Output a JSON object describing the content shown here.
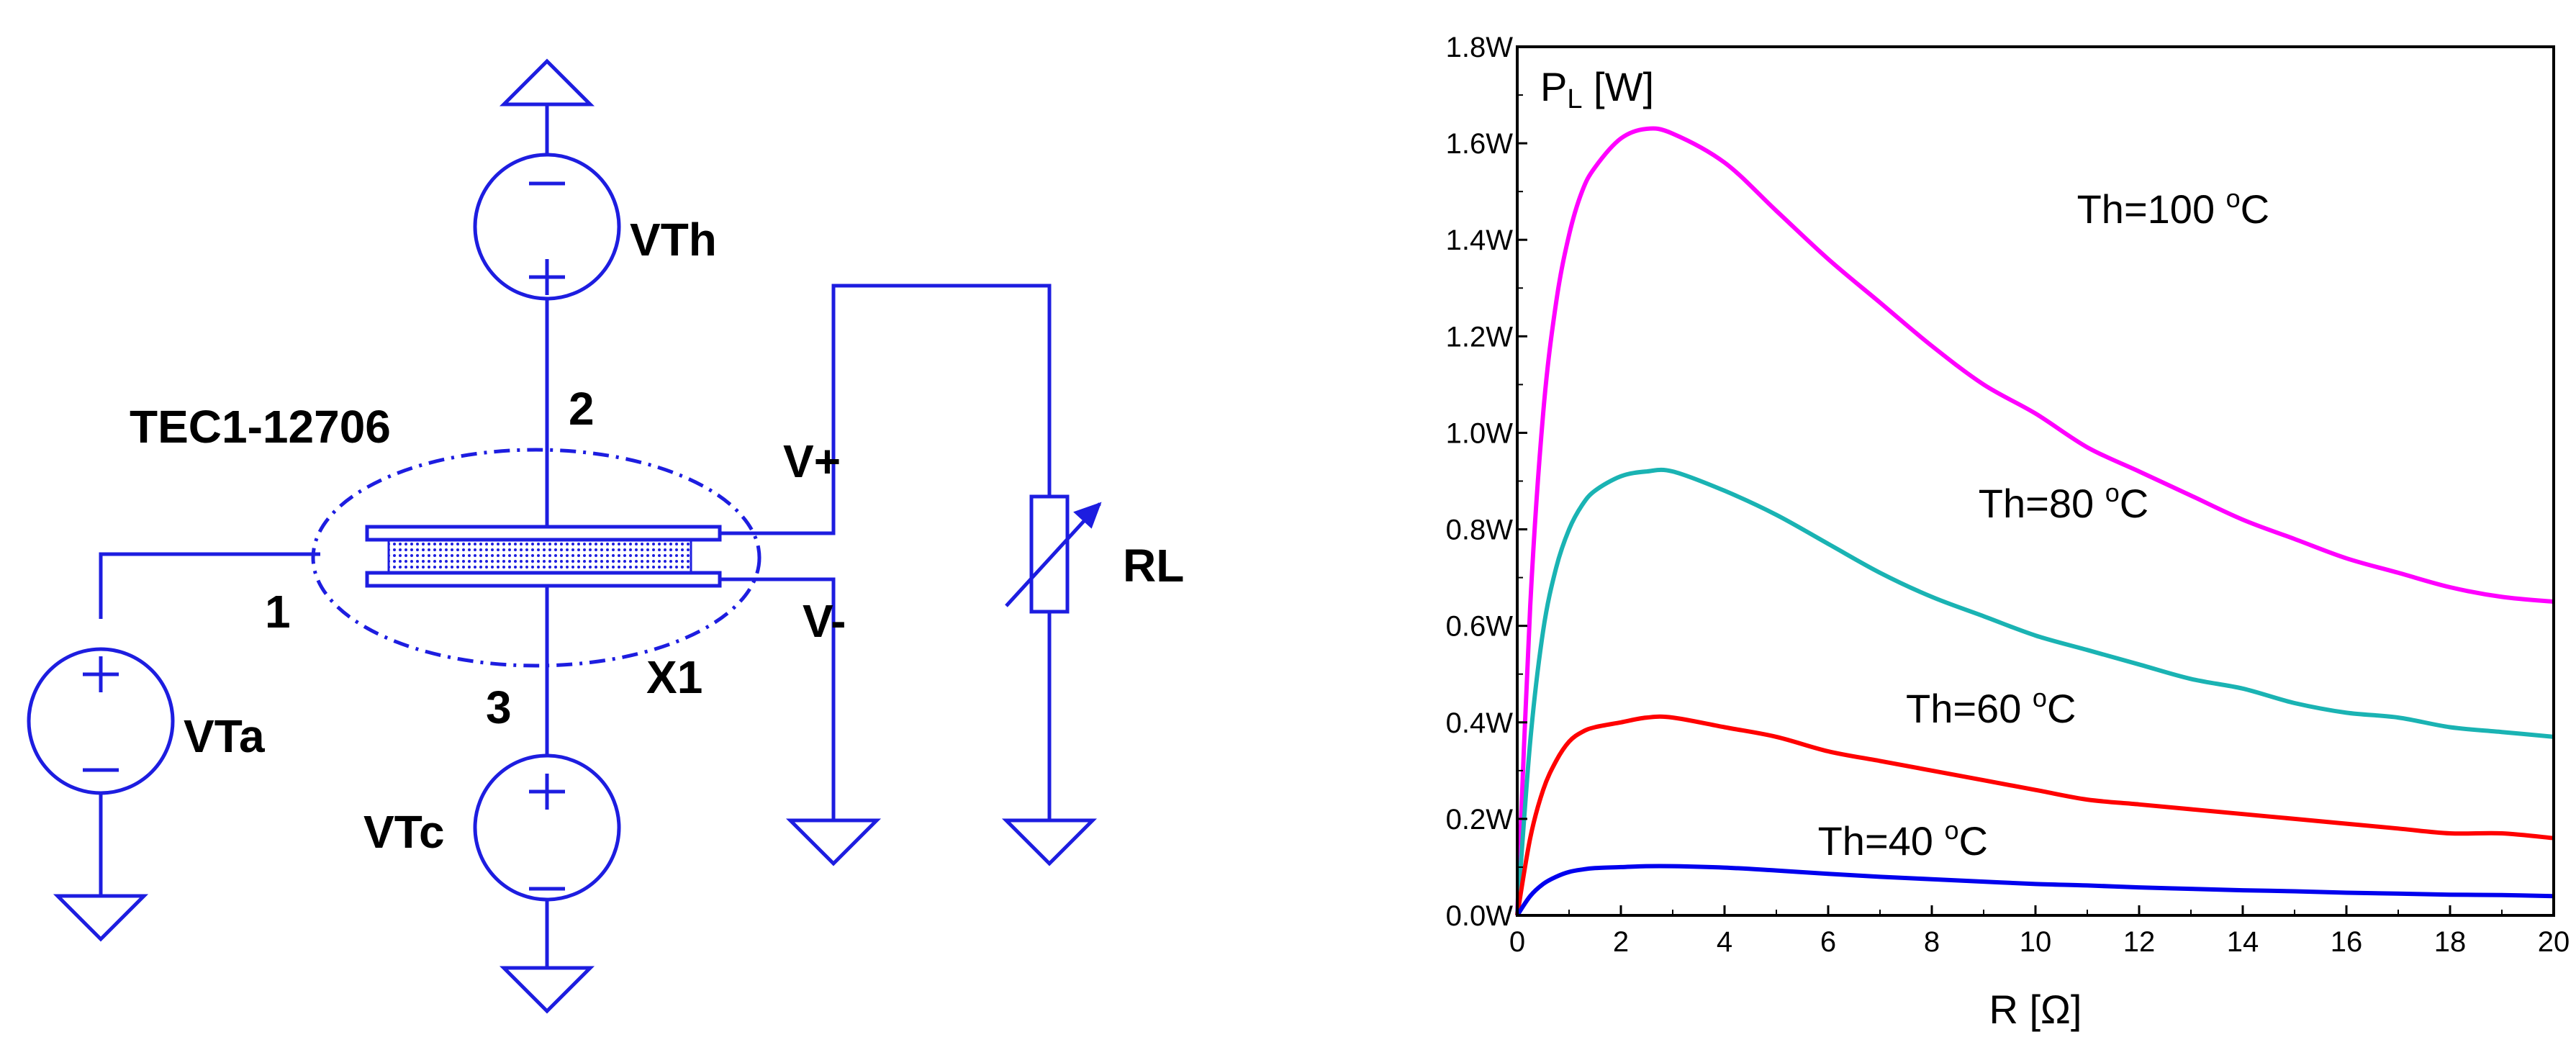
{
  "schematic": {
    "labels": {
      "vth": "VTh",
      "vta": "VTa",
      "vtc": "VTc",
      "tec": "TEC1-12706",
      "x1": "X1",
      "rl": "RL",
      "vplus": "V+",
      "vminus": "V-",
      "node1": "1",
      "node2": "2",
      "node3": "3"
    },
    "wire_color": "#1d1de0"
  },
  "chart_data": {
    "type": "line",
    "ylabel_main": "P",
    "ylabel_sub": "L",
    "ylabel_unit": " [W]",
    "xlabel": "R [Ω]",
    "xlim": [
      0,
      20
    ],
    "ylim": [
      0,
      1.8
    ],
    "xticks": [
      "0",
      "2",
      "4",
      "6",
      "8",
      "10",
      "12",
      "14",
      "16",
      "18",
      "20"
    ],
    "yticks": [
      "0.0W",
      "0.2W",
      "0.4W",
      "0.6W",
      "0.8W",
      "1.0W",
      "1.2W",
      "1.4W",
      "1.6W",
      "1.8W"
    ],
    "grid": false,
    "x": [
      0,
      0.25,
      0.5,
      0.75,
      1,
      1.25,
      1.5,
      2,
      2.5,
      3,
      4,
      5,
      6,
      7,
      8,
      9,
      10,
      11,
      12,
      13,
      14,
      15,
      16,
      17,
      18,
      19,
      20
    ],
    "series": [
      {
        "color": "#ff00ff",
        "values": [
          0,
          0.64,
          1.04,
          1.27,
          1.41,
          1.5,
          1.55,
          1.61,
          1.63,
          1.62,
          1.56,
          1.46,
          1.36,
          1.27,
          1.18,
          1.1,
          1.04,
          0.97,
          0.92,
          0.87,
          0.82,
          0.78,
          0.74,
          0.71,
          0.68,
          0.66,
          0.65
        ]
      },
      {
        "color": "#1ab3b3",
        "values": [
          0,
          0.36,
          0.59,
          0.72,
          0.8,
          0.85,
          0.88,
          0.91,
          0.92,
          0.92,
          0.88,
          0.83,
          0.77,
          0.71,
          0.66,
          0.62,
          0.58,
          0.55,
          0.52,
          0.49,
          0.47,
          0.44,
          0.42,
          0.41,
          0.39,
          0.38,
          0.37
        ]
      },
      {
        "color": "#ff0000",
        "values": [
          0,
          0.16,
          0.26,
          0.32,
          0.36,
          0.38,
          0.39,
          0.4,
          0.41,
          0.41,
          0.39,
          0.37,
          0.34,
          0.32,
          0.3,
          0.28,
          0.26,
          0.24,
          0.23,
          0.22,
          0.21,
          0.2,
          0.19,
          0.18,
          0.17,
          0.17,
          0.16
        ]
      },
      {
        "color": "#0000ee",
        "values": [
          0,
          0.04,
          0.065,
          0.08,
          0.09,
          0.095,
          0.098,
          0.1,
          0.102,
          0.102,
          0.099,
          0.093,
          0.086,
          0.08,
          0.075,
          0.07,
          0.065,
          0.062,
          0.058,
          0.055,
          0.052,
          0.05,
          0.047,
          0.045,
          0.043,
          0.042,
          0.04
        ]
      }
    ],
    "annotations": [
      {
        "base": "Th=100 ",
        "sup": "o",
        "tail": "C",
        "x": 10.8,
        "y": 1.435
      },
      {
        "base": "Th=80 ",
        "sup": "o",
        "tail": "C",
        "x": 8.9,
        "y": 0.825
      },
      {
        "base": "Th=60 ",
        "sup": "o",
        "tail": "C",
        "x": 7.5,
        "y": 0.4
      },
      {
        "base": "Th=40 ",
        "sup": "o",
        "tail": "C",
        "x": 5.8,
        "y": 0.125
      }
    ]
  }
}
